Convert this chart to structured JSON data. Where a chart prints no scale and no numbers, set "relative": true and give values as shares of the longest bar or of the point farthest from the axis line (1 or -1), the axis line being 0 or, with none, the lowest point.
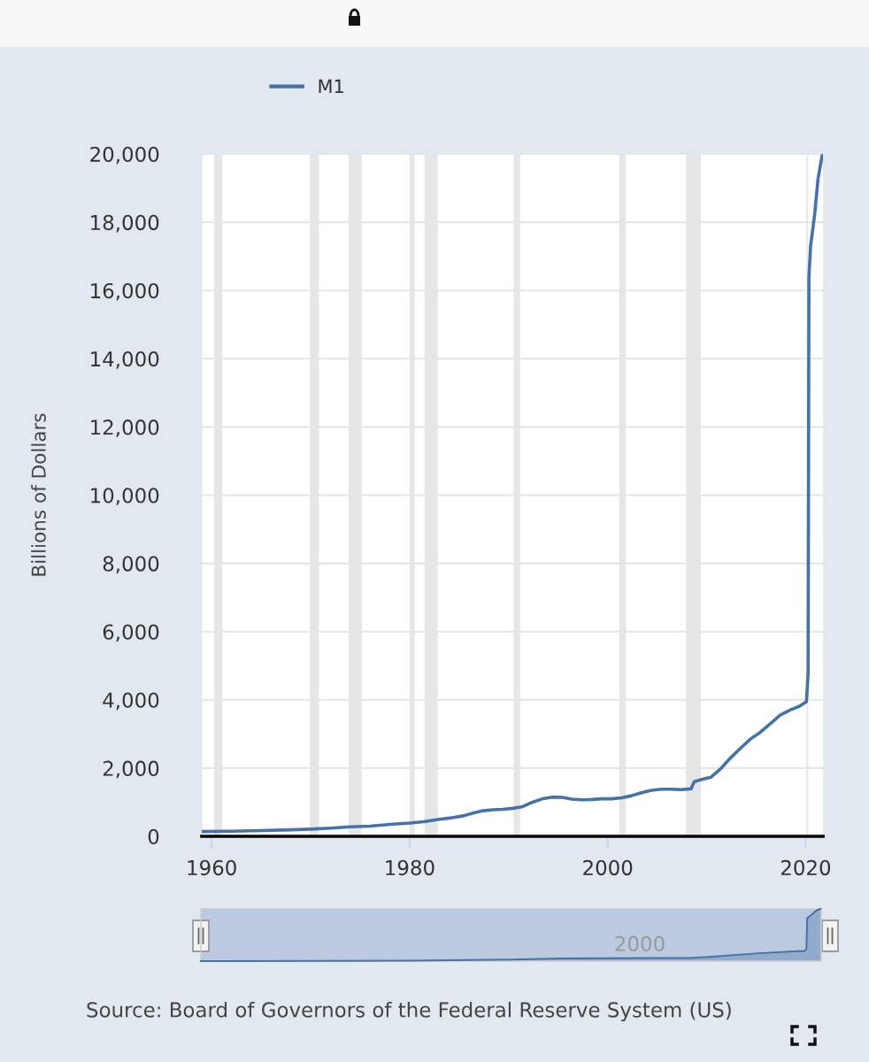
{
  "chart_data": [
    {
      "type": "line",
      "ylabel": "Billions of Dollars",
      "annotations": [
        "Source: Board of Governors of the Federal Reserve System (US)"
      ],
      "x": [
        "1959-01",
        "1962-01",
        "1965-01",
        "1968-01",
        "1970-01",
        "1972-01",
        "1974-01",
        "1976-01",
        "1978-01",
        "1980-01",
        "1981-06",
        "1983-01",
        "1984-06",
        "1985-06",
        "1986-06",
        "1987-06",
        "1988-06",
        "1989-06",
        "1990-06",
        "1991-06",
        "1992-06",
        "1993-06",
        "1994-06",
        "1995-06",
        "1996-06",
        "1997-06",
        "1998-06",
        "1999-06",
        "2000-06",
        "2001-06",
        "2002-06",
        "2003-06",
        "2004-06",
        "2005-06",
        "2006-06",
        "2007-06",
        "2008-06",
        "2008-10",
        "2009-06",
        "2010-06",
        "2011-06",
        "2012-06",
        "2013-06",
        "2014-06",
        "2015-06",
        "2016-06",
        "2017-06",
        "2018-06",
        "2019-06",
        "2020-02",
        "2020-04",
        "2020-05",
        "2020-07",
        "2020-12",
        "2021-04",
        "2021-09"
      ],
      "series": [
        {
          "name": "M1",
          "color": "#4572a7",
          "values": [
            140,
            150,
            170,
            190,
            210,
            240,
            280,
            300,
            350,
            390,
            430,
            500,
            550,
            600,
            680,
            750,
            780,
            790,
            820,
            870,
            1000,
            1100,
            1150,
            1140,
            1090,
            1070,
            1080,
            1100,
            1100,
            1130,
            1190,
            1280,
            1350,
            1380,
            1380,
            1370,
            1390,
            1600,
            1660,
            1730,
            1980,
            2300,
            2580,
            2850,
            3050,
            3300,
            3550,
            3700,
            3820,
            3950,
            4800,
            16400,
            17300,
            18250,
            19270,
            19950
          ]
        }
      ],
      "xlim": [
        "1959-01",
        "2021-10"
      ],
      "ylim": [
        0,
        20000
      ],
      "xticks": [
        "1960",
        "1980",
        "2000",
        "2020"
      ],
      "yticks": [
        0,
        {
          "value": 2000,
          "label": "2,000"
        },
        {
          "value": 4000,
          "label": "4,000"
        },
        {
          "value": 6000,
          "label": "6,000"
        },
        {
          "value": 8000,
          "label": "8,000"
        },
        {
          "value": 10000,
          "label": "10,000"
        },
        {
          "value": 12000,
          "label": "12,000"
        },
        {
          "value": 14000,
          "label": "14,000"
        },
        {
          "value": 16000,
          "label": "16,000"
        },
        {
          "value": 18000,
          "label": "18,000"
        },
        {
          "value": 20000,
          "label": "20,000"
        }
      ],
      "grid": "y",
      "legend": "top left",
      "bands": [
        {
          "axis": "x",
          "from": "1960-04",
          "to": "1961-02",
          "color": "#e6e6e6"
        },
        {
          "axis": "x",
          "from": "1969-12",
          "to": "1970-11",
          "color": "#e6e6e6"
        },
        {
          "axis": "x",
          "from": "1973-11",
          "to": "1975-03",
          "color": "#e6e6e6"
        },
        {
          "axis": "x",
          "from": "1980-01",
          "to": "1980-07",
          "color": "#e6e6e6"
        },
        {
          "axis": "x",
          "from": "1981-07",
          "to": "1982-11",
          "color": "#e6e6e6"
        },
        {
          "axis": "x",
          "from": "1990-07",
          "to": "1991-03",
          "color": "#e6e6e6"
        },
        {
          "axis": "x",
          "from": "2001-03",
          "to": "2001-11",
          "color": "#e6e6e6"
        },
        {
          "axis": "x",
          "from": "2007-12",
          "to": "2009-06",
          "color": "#e6e6e6"
        },
        {
          "axis": "x",
          "from": "2020-02",
          "to": "2020-04",
          "color": "#e6e6e6"
        }
      ]
    },
    {
      "type": "area",
      "relative": true,
      "annotations": [
        "2000"
      ],
      "x": [
        "1959-01",
        "1980-01",
        "1990-06",
        "1995-06",
        "2005-06",
        "2008-06",
        "2010-06",
        "2015-06",
        "2019-06",
        "2020-02",
        "2020-04",
        "2020-05",
        "2020-12",
        "2021-04",
        "2021-09"
      ],
      "series": [
        {
          "color": "#4572a7",
          "values": [
            0,
            0.01,
            0.03,
            0.05,
            0.06,
            0.06,
            0.08,
            0.15,
            0.19,
            0.19,
            0.24,
            0.82,
            0.91,
            0.97,
            1
          ]
        }
      ],
      "xlim": [
        "1959-01",
        "2021-10"
      ]
    }
  ]
}
